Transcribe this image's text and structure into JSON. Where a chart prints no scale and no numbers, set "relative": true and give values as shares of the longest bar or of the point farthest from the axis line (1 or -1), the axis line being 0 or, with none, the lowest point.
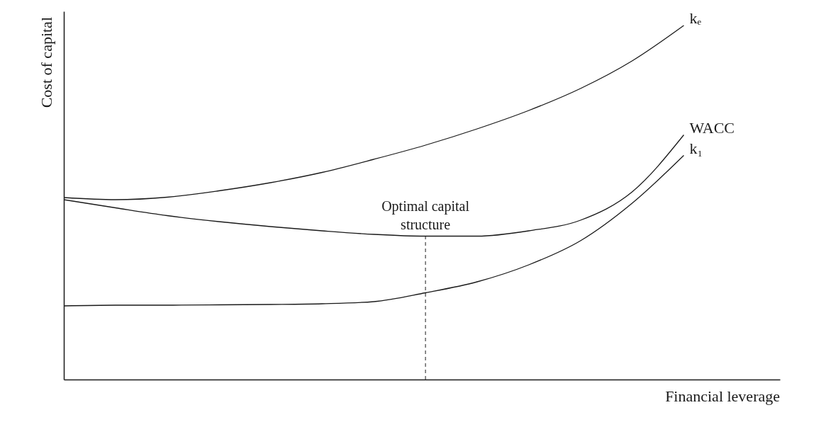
{
  "chart_data": {
    "type": "line",
    "relative": true,
    "xlabel": "Financial leverage",
    "ylabel": "Cost of capital",
    "categories": [
      null,
      null,
      null,
      null,
      null,
      null,
      null,
      null,
      null,
      null,
      null,
      null,
      null
    ],
    "series": [
      {
        "name": "kₑ",
        "color": "#1a1a1a",
        "values": [
          0.514,
          0.508,
          0.515,
          0.533,
          0.556,
          0.585,
          0.622,
          0.662,
          0.708,
          0.76,
          0.822,
          0.9,
          1.0
        ]
      },
      {
        "name": "WACC",
        "color": "#1a1a1a",
        "values": [
          0.508,
          0.485,
          0.463,
          0.446,
          0.432,
          0.42,
          0.41,
          0.405,
          0.405,
          0.42,
          0.45,
          0.53,
          0.691
        ]
      },
      {
        "name": "k₁",
        "color": "#1a1a1a",
        "values": [
          0.208,
          0.21,
          0.21,
          0.211,
          0.212,
          0.214,
          0.22,
          0.245,
          0.276,
          0.324,
          0.392,
          0.498,
          0.633
        ]
      }
    ],
    "annotations": [
      "Optimal capital structure"
    ],
    "legend": false,
    "grid": false,
    "tick_labels": false,
    "marker": "none",
    "line_style": "solid"
  }
}
